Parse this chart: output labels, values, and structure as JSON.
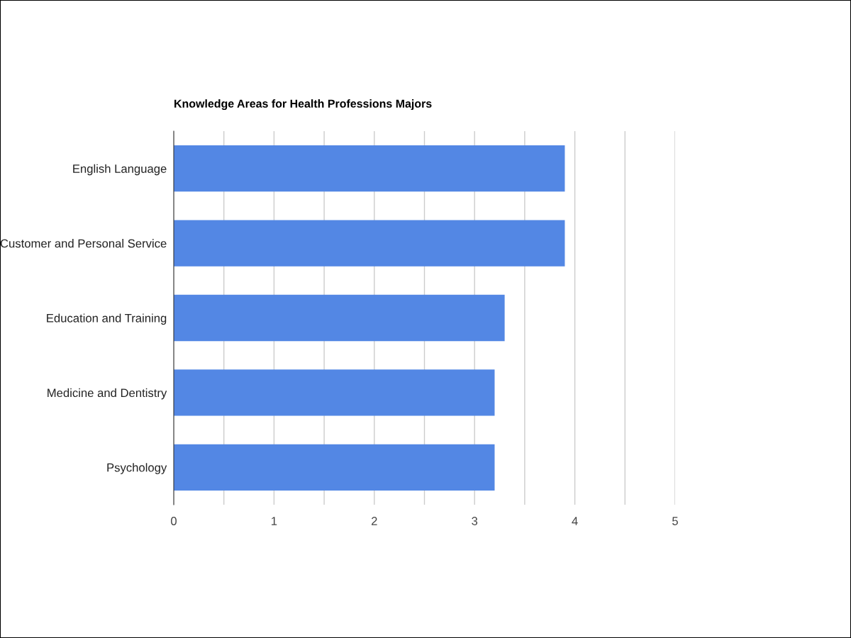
{
  "chart_data": {
    "type": "bar",
    "orientation": "horizontal",
    "title": "Knowledge Areas for Health Professions Majors",
    "categories": [
      "English Language",
      "Customer and Personal Service",
      "Education and Training",
      "Medicine and Dentistry",
      "Psychology"
    ],
    "values": [
      3.9,
      3.9,
      3.3,
      3.2,
      3.2
    ],
    "color": "#5387e4",
    "xlim": [
      0,
      5
    ],
    "xticks": [
      0,
      {
        "value": 0.5,
        "label": null
      },
      1,
      {
        "value": 1.5,
        "label": null
      },
      2,
      {
        "value": 2.5,
        "label": null
      },
      3,
      {
        "value": 3.5,
        "label": null
      },
      4,
      {
        "value": 4.5,
        "label": null
      },
      5
    ],
    "grid": "x",
    "legend": false
  }
}
